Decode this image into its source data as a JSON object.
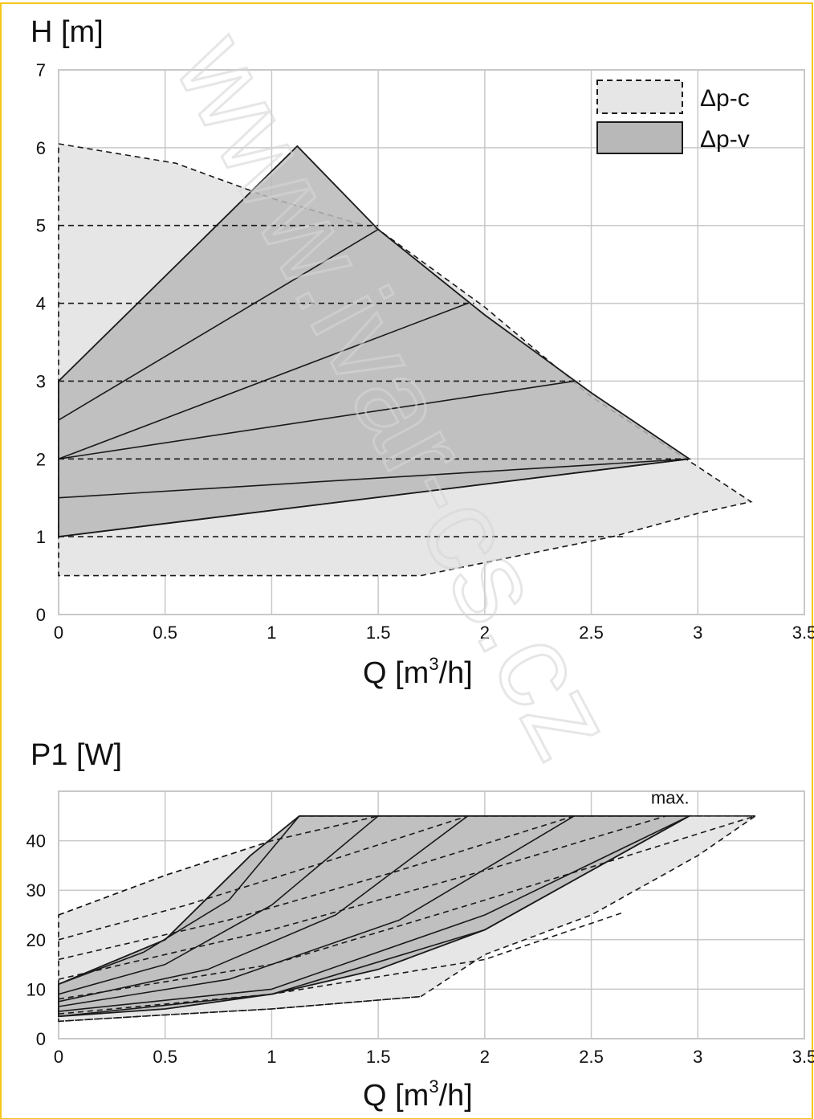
{
  "colors": {
    "border": "#f5c518",
    "grid": "#c8c8c8",
    "pc_fill": "#e6e6e6",
    "pv_fill": "#b8b8b8",
    "line": "#1a1a1a"
  },
  "watermark": "www.ivar-cs.cz",
  "chart_data": [
    {
      "type": "area",
      "title": "H [m]",
      "xlabel": "Q [m",
      "xlabel_sup": "3",
      "xlabel_tail": "/h]",
      "xlim": [
        0,
        3.5
      ],
      "ylim": [
        0,
        7
      ],
      "x_ticks": [
        "0",
        "0.5",
        "1",
        "1.5",
        "2",
        "2.5",
        "3",
        "3.5"
      ],
      "y_ticks": [
        "0",
        "1",
        "2",
        "3",
        "4",
        "5",
        "6",
        "7"
      ],
      "grid": true,
      "legend": {
        "placement": "top-right",
        "entries": [
          {
            "label": "Δp-c",
            "style": "dashed",
            "fill": "light"
          },
          {
            "label": "Δp-v",
            "style": "solid",
            "fill": "dark"
          }
        ]
      },
      "series": [
        {
          "name": "Δp-c",
          "kind": "region",
          "style": "dashed",
          "points": [
            [
              0,
              6.05
            ],
            [
              0.55,
              5.8
            ],
            [
              1.0,
              5.35
            ],
            [
              1.5,
              4.95
            ],
            [
              2.0,
              3.95
            ],
            [
              2.5,
              2.8
            ],
            [
              3.25,
              1.45
            ],
            [
              3.0,
              1.3
            ],
            [
              2.6,
              1.0
            ],
            [
              1.7,
              0.5
            ],
            [
              0,
              0.5
            ]
          ]
        },
        {
          "name": "Δp-v",
          "kind": "region",
          "style": "solid",
          "points": [
            [
              0,
              3.0
            ],
            [
              1.12,
              6.02
            ],
            [
              1.5,
              4.95
            ],
            [
              2.0,
              3.85
            ],
            [
              2.5,
              2.85
            ],
            [
              2.96,
              2.0
            ],
            [
              0,
              1.0
            ]
          ]
        },
        {
          "name": "Δp-c",
          "kind": "hline",
          "style": "dashed",
          "points": [
            [
              0,
              5.0
            ],
            [
              1.5,
              5.0
            ]
          ]
        },
        {
          "name": "Δp-c",
          "kind": "hline",
          "style": "dashed",
          "points": [
            [
              0,
              4.0
            ],
            [
              1.95,
              4.0
            ]
          ]
        },
        {
          "name": "Δp-c",
          "kind": "hline",
          "style": "dashed",
          "points": [
            [
              0,
              3.0
            ],
            [
              2.45,
              3.0
            ]
          ]
        },
        {
          "name": "Δp-c",
          "kind": "hline",
          "style": "dashed",
          "points": [
            [
              0,
              2.0
            ],
            [
              2.95,
              2.0
            ]
          ]
        },
        {
          "name": "Δp-c",
          "kind": "hline",
          "style": "dashed",
          "points": [
            [
              0,
              1.0
            ],
            [
              2.65,
              1.0
            ]
          ]
        },
        {
          "name": "Δp-v",
          "kind": "line",
          "style": "solid",
          "points": [
            [
              0,
              2.5
            ],
            [
              1.5,
              4.95
            ]
          ]
        },
        {
          "name": "Δp-v",
          "kind": "line",
          "style": "solid",
          "points": [
            [
              0,
              2.0
            ],
            [
              1.92,
              4.0
            ]
          ]
        },
        {
          "name": "Δp-v",
          "kind": "line",
          "style": "solid",
          "points": [
            [
              0,
              2.0
            ],
            [
              2.42,
              3.0
            ]
          ]
        },
        {
          "name": "Δp-v",
          "kind": "line",
          "style": "solid",
          "points": [
            [
              0,
              1.5
            ],
            [
              2.96,
              2.0
            ]
          ]
        },
        {
          "name": "Δp-v",
          "kind": "line",
          "style": "solid",
          "points": [
            [
              0,
              1.0
            ],
            [
              2.96,
              2.0
            ]
          ]
        }
      ]
    },
    {
      "type": "area",
      "title": "P1 [W]",
      "xlabel": "Q [m",
      "xlabel_sup": "3",
      "xlabel_tail": "/h]",
      "xlim": [
        0,
        3.5
      ],
      "ylim": [
        0,
        50
      ],
      "x_ticks": [
        "0",
        "0.5",
        "1",
        "1.5",
        "2",
        "2.5",
        "3",
        "3.5"
      ],
      "y_ticks": [
        "0",
        "10",
        "20",
        "30",
        "40"
      ],
      "y_tick_values": [
        0,
        10,
        20,
        30,
        40
      ],
      "grid": true,
      "annotations": [
        {
          "text": "max.",
          "x": 2.78,
          "y": 47
        }
      ],
      "series": [
        {
          "name": "Δp-c",
          "kind": "region",
          "style": "dashed",
          "points": [
            [
              0,
              25
            ],
            [
              0.5,
              33
            ],
            [
              1.0,
              40
            ],
            [
              1.3,
              43
            ],
            [
              1.5,
              45
            ],
            [
              2.0,
              45
            ],
            [
              2.5,
              45
            ],
            [
              3.0,
              45
            ],
            [
              3.27,
              45
            ],
            [
              3.0,
              37
            ],
            [
              2.5,
              25
            ],
            [
              2.0,
              17
            ],
            [
              1.7,
              8.5
            ],
            [
              1.0,
              6
            ],
            [
              0.5,
              4.8
            ],
            [
              0,
              3.5
            ]
          ]
        },
        {
          "name": "Δp-v",
          "kind": "region",
          "style": "solid",
          "points": [
            [
              0,
              11
            ],
            [
              0.5,
              20
            ],
            [
              0.9,
              37
            ],
            [
              1.13,
              45
            ],
            [
              1.5,
              45
            ],
            [
              2.0,
              45
            ],
            [
              2.5,
              45
            ],
            [
              2.96,
              45
            ],
            [
              2.5,
              34
            ],
            [
              2.0,
              22
            ],
            [
              1.5,
              14
            ],
            [
              1.0,
              9
            ],
            [
              0.5,
              6
            ],
            [
              0,
              4.5
            ]
          ]
        },
        {
          "name": "Δp-v",
          "kind": "line",
          "style": "solid",
          "points": [
            [
              0,
              11
            ],
            [
              0.4,
              17.5
            ],
            [
              0.8,
              28
            ],
            [
              1.13,
              45
            ]
          ]
        },
        {
          "name": "Δp-v",
          "kind": "line",
          "style": "solid",
          "points": [
            [
              0,
              9
            ],
            [
              0.5,
              15
            ],
            [
              1.0,
              27
            ],
            [
              1.5,
              45
            ]
          ]
        },
        {
          "name": "Δp-v",
          "kind": "line",
          "style": "solid",
          "points": [
            [
              0,
              7.5
            ],
            [
              0.7,
              14
            ],
            [
              1.3,
              25
            ],
            [
              1.92,
              45
            ]
          ]
        },
        {
          "name": "Δp-v",
          "kind": "line",
          "style": "solid",
          "points": [
            [
              0,
              6.5
            ],
            [
              0.8,
              12
            ],
            [
              1.6,
              24
            ],
            [
              2.42,
              45
            ]
          ]
        },
        {
          "name": "Δp-v",
          "kind": "line",
          "style": "solid",
          "points": [
            [
              0,
              5.5
            ],
            [
              1.0,
              10
            ],
            [
              2.0,
              25
            ],
            [
              2.96,
              45
            ]
          ]
        },
        {
          "name": "Δp-v",
          "kind": "line",
          "style": "solid",
          "points": [
            [
              0,
              4.5
            ],
            [
              1.0,
              9
            ],
            [
              2.0,
              22
            ],
            [
              2.96,
              45
            ]
          ]
        },
        {
          "name": "Δp-c",
          "kind": "line",
          "style": "dashed",
          "points": [
            [
              0,
              25
            ],
            [
              0.5,
              33
            ],
            [
              1.0,
              40
            ],
            [
              1.5,
              45
            ]
          ]
        },
        {
          "name": "Δp-c",
          "kind": "line",
          "style": "dashed",
          "points": [
            [
              0,
              20
            ],
            [
              0.6,
              27
            ],
            [
              1.2,
              35
            ],
            [
              1.92,
              45
            ]
          ]
        },
        {
          "name": "Δp-c",
          "kind": "line",
          "style": "dashed",
          "points": [
            [
              0,
              16
            ],
            [
              0.8,
              24
            ],
            [
              1.6,
              34
            ],
            [
              2.42,
              45
            ]
          ]
        },
        {
          "name": "Δp-c",
          "kind": "line",
          "style": "dashed",
          "points": [
            [
              0,
              12
            ],
            [
              1.0,
              22
            ],
            [
              2.0,
              34
            ],
            [
              2.85,
              45
            ]
          ]
        },
        {
          "name": "Δp-c",
          "kind": "line",
          "style": "dashed",
          "points": [
            [
              0,
              8
            ],
            [
              1.0,
              15
            ],
            [
              2.0,
              28
            ],
            [
              3.27,
              45
            ]
          ]
        },
        {
          "name": "Δp-c",
          "kind": "line",
          "style": "dashed",
          "points": [
            [
              0,
              5
            ],
            [
              1.0,
              9
            ],
            [
              2.0,
              16
            ],
            [
              2.65,
              25.5
            ]
          ]
        },
        {
          "name": "Δp-c",
          "kind": "line",
          "style": "dashed",
          "points": [
            [
              0,
              3.5
            ],
            [
              0.5,
              4.8
            ],
            [
              1.0,
              6
            ],
            [
              1.7,
              8.5
            ]
          ]
        },
        {
          "name": "max",
          "kind": "hline",
          "style": "dashed",
          "points": [
            [
              1.13,
              45
            ],
            [
              3.27,
              45
            ]
          ]
        }
      ]
    }
  ]
}
